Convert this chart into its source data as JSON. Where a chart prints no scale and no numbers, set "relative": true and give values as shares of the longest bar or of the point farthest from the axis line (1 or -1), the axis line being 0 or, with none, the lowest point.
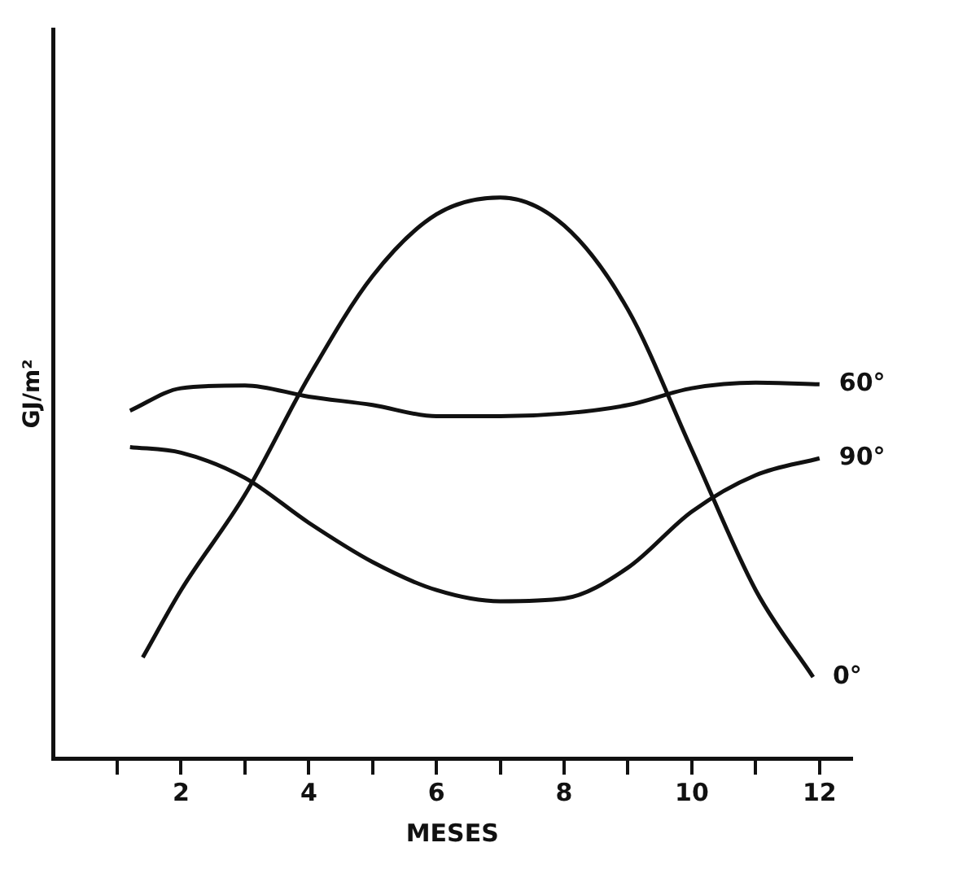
{
  "chart_data": {
    "type": "line",
    "relative": true,
    "xlabel": "MESES",
    "ylabel": "GJ/m²",
    "xlim": [
      0,
      12.5
    ],
    "xticks": [
      {
        "value": 1,
        "label": null
      },
      2,
      {
        "value": 3,
        "label": null
      },
      4,
      {
        "value": 5,
        "label": null
      },
      6,
      {
        "value": 7,
        "label": null
      },
      8,
      {
        "value": 9,
        "label": null
      },
      10,
      {
        "value": 11,
        "label": null
      },
      12
    ],
    "grid": false,
    "legend": false,
    "marker": "none",
    "line_style": "solid",
    "series": [
      {
        "name": "0°",
        "color": "#111111",
        "x": [
          1.4,
          2,
          3,
          4,
          5,
          6,
          7,
          8,
          9,
          10,
          11,
          11.9
        ],
        "values": [
          0.18,
          0.3,
          0.47,
          0.68,
          0.86,
          0.97,
          1,
          0.95,
          0.8,
          0.55,
          0.3,
          0.145
        ]
      },
      {
        "name": "60°",
        "color": "#111111",
        "x": [
          1.2,
          2,
          3,
          4,
          5,
          6,
          7,
          8,
          9,
          10,
          11,
          12
        ],
        "values": [
          0.62,
          0.66,
          0.665,
          0.645,
          0.63,
          0.61,
          0.61,
          0.615,
          0.63,
          0.66,
          0.67,
          0.667
        ]
      },
      {
        "name": "90°",
        "color": "#111111",
        "x": [
          1.2,
          2,
          3,
          4,
          5,
          6,
          7,
          8,
          9,
          10,
          11,
          12
        ],
        "values": [
          0.555,
          0.545,
          0.5,
          0.42,
          0.35,
          0.3,
          0.28,
          0.285,
          0.34,
          0.44,
          0.505,
          0.535
        ]
      }
    ]
  }
}
